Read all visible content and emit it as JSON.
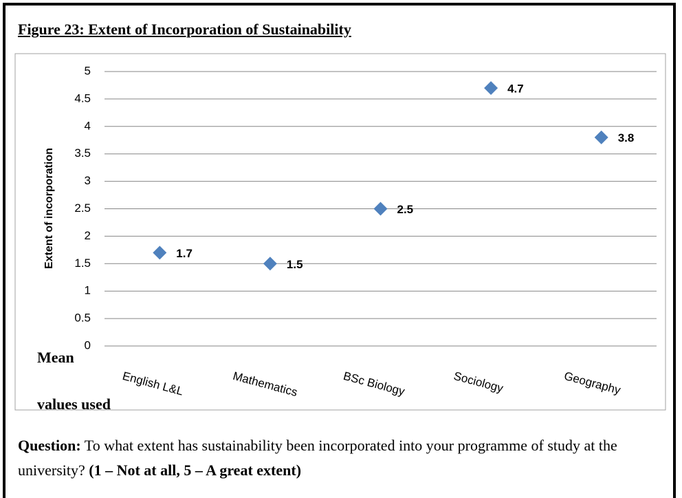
{
  "figure_title": "Figure 23: Extent of Incorporation of Sustainability",
  "chart_data": {
    "type": "scatter",
    "ylabel": "Extent of incorporation",
    "categories": [
      "English L&L",
      "Mathematics",
      "BSc Biology",
      "Sociology",
      "Geography"
    ],
    "values": [
      1.7,
      1.5,
      2.5,
      4.7,
      3.8
    ],
    "color": "#4f81bd",
    "ylim": [
      0,
      5
    ],
    "yticks": [
      0,
      0.5,
      1,
      1.5,
      2,
      2.5,
      3,
      3.5,
      4,
      4.5,
      5
    ],
    "grid": true,
    "data_labels": true,
    "annotation": [
      "Mean",
      "values used"
    ]
  },
  "caption": {
    "label": "Question:",
    "text": "To what extent has sustainability been incorporated into your programme of study at the university?",
    "scale": "(1 – Not at all, 5 – A great extent)"
  }
}
